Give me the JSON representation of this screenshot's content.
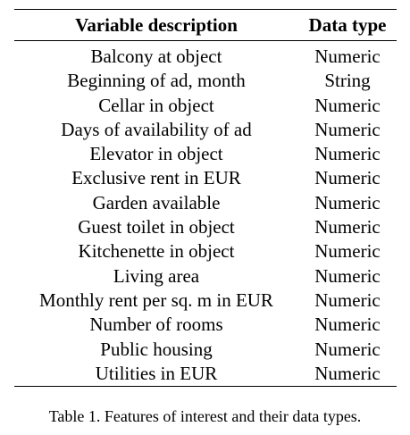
{
  "table": {
    "headers": [
      "Variable description",
      "Data type"
    ],
    "rows": [
      [
        "Balcony at object",
        "Numeric"
      ],
      [
        "Beginning of ad, month",
        "String"
      ],
      [
        "Cellar in object",
        "Numeric"
      ],
      [
        "Days of availability of ad",
        "Numeric"
      ],
      [
        "Elevator in object",
        "Numeric"
      ],
      [
        "Exclusive rent in EUR",
        "Numeric"
      ],
      [
        "Garden available",
        "Numeric"
      ],
      [
        "Guest toilet in object",
        "Numeric"
      ],
      [
        "Kitchenette in object",
        "Numeric"
      ],
      [
        "Living area",
        "Numeric"
      ],
      [
        "Monthly rent per sq. m in EUR",
        "Numeric"
      ],
      [
        "Number of rooms",
        "Numeric"
      ],
      [
        "Public housing",
        "Numeric"
      ],
      [
        "Utilities in EUR",
        "Numeric"
      ]
    ]
  },
  "caption": "Table 1. Features of interest and their data types."
}
